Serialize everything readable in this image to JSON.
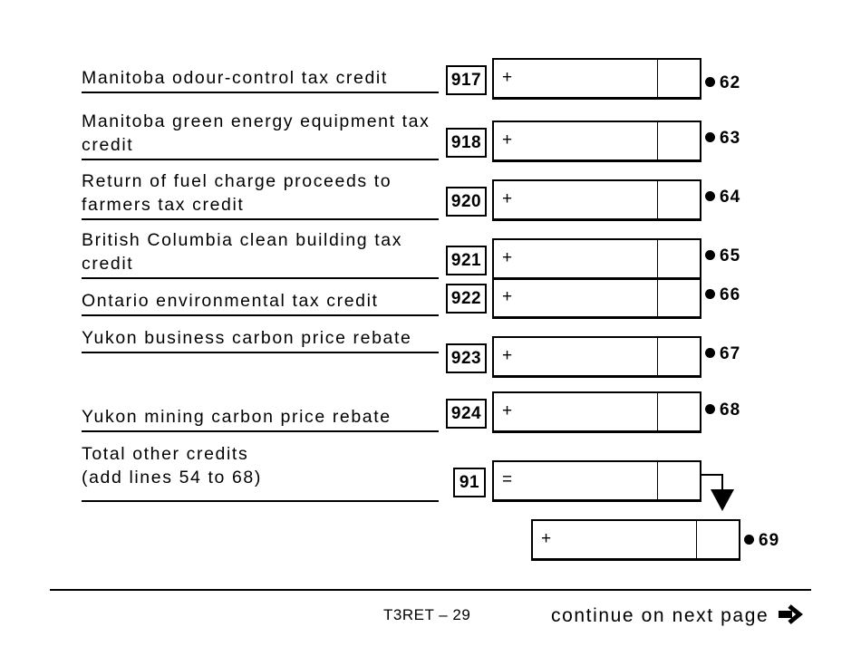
{
  "rows": [
    {
      "label": "Manitoba odour-control tax credit",
      "code": "917",
      "sign": "+",
      "line": "62"
    },
    {
      "label": "Manitoba green energy equipment tax credit",
      "code": "918",
      "sign": "+",
      "line": "63"
    },
    {
      "label": "Return of fuel charge proceeds to farmers tax credit",
      "code": "920",
      "sign": "+",
      "line": "64"
    },
    {
      "label": "British Columbia clean building tax credit",
      "code": "921",
      "sign": "+",
      "line": "65"
    },
    {
      "label": "Ontario environmental tax credit",
      "code": "922",
      "sign": "+",
      "line": "66"
    },
    {
      "label": "Yukon business carbon price rebate",
      "code": "923",
      "sign": "+",
      "line": "67"
    },
    {
      "label": "Yukon mining carbon price rebate",
      "code": "924",
      "sign": "+",
      "line": "68"
    }
  ],
  "total": {
    "label_line1": "Total other credits",
    "label_line2": "(add lines 54 to 68)",
    "code": "91",
    "sign": "=",
    "carry_sign": "+",
    "carry_line": "69"
  },
  "footer": {
    "page": "T3RET – 29",
    "continue": "continue on next page"
  }
}
